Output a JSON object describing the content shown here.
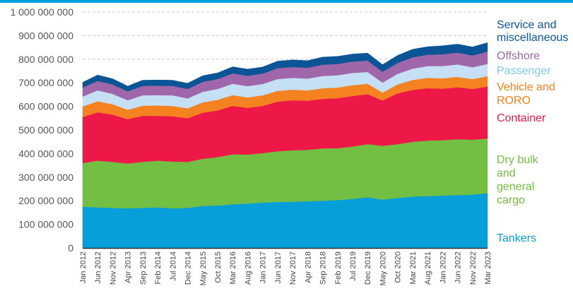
{
  "chart_data": {
    "type": "area",
    "stacked": true,
    "title": "",
    "xlabel": "",
    "ylabel": "",
    "ylim": [
      0,
      1000000000
    ],
    "grid": true,
    "legend_placement": "right",
    "yticks": [
      {
        "value": 0,
        "label": "0"
      },
      {
        "value": 100000000,
        "label": "100 000 000"
      },
      {
        "value": 200000000,
        "label": "200 000 000"
      },
      {
        "value": 300000000,
        "label": "300 000 000"
      },
      {
        "value": 400000000,
        "label": "400 000 000"
      },
      {
        "value": 500000000,
        "label": "500 000 000"
      },
      {
        "value": 600000000,
        "label": "600 000 000"
      },
      {
        "value": 700000000,
        "label": "700 000 000"
      },
      {
        "value": 800000000,
        "label": "800 000 000"
      },
      {
        "value": 900000000,
        "label": "900 000 000"
      },
      {
        "value": 1000000000,
        "label": "1 000 000 000"
      }
    ],
    "categories": [
      "Jan 2012",
      "Jun 2012",
      "Nov 2012",
      "Apr 2013",
      "Sep 2013",
      "Feb 2014",
      "Jul 2014",
      "Dec 2014",
      "May 2015",
      "Oct 2015",
      "Mar 2016",
      "Aug 2016",
      "Jan 2017",
      "Jun 2017",
      "Nov 2017",
      "Apr 2018",
      "Sep 2018",
      "Feb 2019",
      "Jul 2019",
      "Dec 2019",
      "May 2020",
      "Oct 2020",
      "Mar 2021",
      "Aug 2021",
      "Jan 2022",
      "Jun 2022",
      "Nov 2022",
      "Mar 2023"
    ],
    "series": [
      {
        "name": "Tankers",
        "color": "#079fd9",
        "values": [
          175000000,
          172000000,
          170000000,
          168000000,
          170000000,
          172000000,
          168000000,
          170000000,
          178000000,
          180000000,
          185000000,
          188000000,
          192000000,
          195000000,
          196000000,
          198000000,
          200000000,
          203000000,
          208000000,
          215000000,
          205000000,
          212000000,
          218000000,
          220000000,
          222000000,
          224000000,
          226000000,
          232000000
        ]
      },
      {
        "name": "Dry bulk and general cargo",
        "color": "#72bf44",
        "values": [
          185000000,
          198000000,
          195000000,
          190000000,
          195000000,
          198000000,
          198000000,
          195000000,
          200000000,
          205000000,
          212000000,
          208000000,
          210000000,
          215000000,
          218000000,
          218000000,
          222000000,
          220000000,
          222000000,
          225000000,
          228000000,
          228000000,
          232000000,
          235000000,
          235000000,
          237000000,
          233000000,
          232000000
        ]
      },
      {
        "name": "Container",
        "color": "#ed1847",
        "values": [
          195000000,
          205000000,
          200000000,
          188000000,
          195000000,
          190000000,
          192000000,
          185000000,
          195000000,
          198000000,
          205000000,
          198000000,
          200000000,
          210000000,
          212000000,
          208000000,
          210000000,
          212000000,
          214000000,
          212000000,
          192000000,
          215000000,
          220000000,
          222000000,
          218000000,
          220000000,
          215000000,
          220000000
        ]
      },
      {
        "name": "Vehicle and RORO",
        "color": "#f58220",
        "values": [
          45000000,
          47000000,
          44000000,
          40000000,
          43000000,
          44000000,
          44000000,
          42000000,
          44000000,
          45000000,
          46000000,
          44000000,
          45000000,
          46000000,
          45000000,
          44000000,
          45000000,
          45000000,
          46000000,
          44000000,
          34000000,
          38000000,
          42000000,
          44000000,
          44000000,
          44000000,
          42000000,
          44000000
        ]
      },
      {
        "name": "Passenger",
        "color": "#c5dff4",
        "values": [
          42000000,
          46000000,
          44000000,
          40000000,
          44000000,
          44000000,
          45000000,
          42000000,
          45000000,
          46000000,
          48000000,
          48000000,
          48000000,
          50000000,
          50000000,
          50000000,
          52000000,
          52000000,
          52000000,
          50000000,
          42000000,
          45000000,
          48000000,
          50000000,
          52000000,
          53000000,
          50000000,
          52000000
        ]
      },
      {
        "name": "Offshore",
        "color": "#a066aa",
        "values": [
          38000000,
          40000000,
          40000000,
          38000000,
          40000000,
          40000000,
          40000000,
          40000000,
          42000000,
          42000000,
          44000000,
          44000000,
          44000000,
          46000000,
          46000000,
          46000000,
          48000000,
          48000000,
          48000000,
          48000000,
          46000000,
          46000000,
          48000000,
          48000000,
          50000000,
          50000000,
          50000000,
          52000000
        ]
      },
      {
        "name": "Service and miscellaneous",
        "color": "#0b5496",
        "values": [
          22000000,
          25000000,
          24000000,
          22000000,
          24000000,
          24000000,
          24000000,
          24000000,
          26000000,
          26000000,
          28000000,
          28000000,
          28000000,
          30000000,
          30000000,
          30000000,
          32000000,
          32000000,
          32000000,
          32000000,
          30000000,
          32000000,
          34000000,
          34000000,
          36000000,
          36000000,
          36000000,
          38000000
        ]
      }
    ],
    "legend": [
      {
        "label_lines": [
          "Service and",
          "miscellaneous"
        ],
        "color": "#0b5496"
      },
      {
        "label_lines": [
          "Offshore"
        ],
        "color": "#a066aa"
      },
      {
        "label_lines": [
          "Passenger"
        ],
        "color": "#7fcaea"
      },
      {
        "label_lines": [
          "Vehicle and",
          "RORO"
        ],
        "color": "#f58220"
      },
      {
        "label_lines": [
          "Container"
        ],
        "color": "#ed1847"
      },
      {
        "label_lines": [
          "Dry bulk",
          "and",
          "general",
          "cargo"
        ],
        "color": "#72bf44"
      },
      {
        "label_lines": [
          "Tankers"
        ],
        "color": "#079fd9"
      }
    ]
  },
  "colors": {
    "top_bar": "#009edb",
    "grid": "#cccccc",
    "axis": "#333333"
  }
}
